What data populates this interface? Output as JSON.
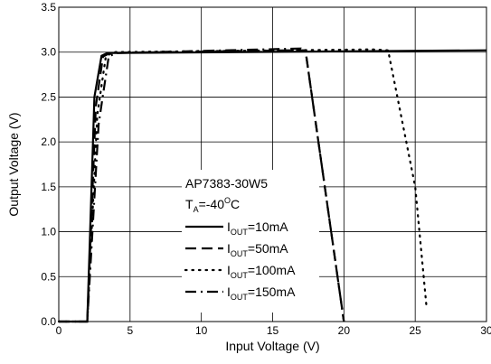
{
  "chart_data": {
    "type": "line",
    "xlabel": "Input Voltage (V)",
    "ylabel": "Output Voltage (V)",
    "xlim": [
      0,
      30
    ],
    "ylim": [
      0,
      3.5
    ],
    "x_ticks": [
      "0",
      "5",
      "10",
      "15",
      "20",
      "25",
      "30"
    ],
    "y_ticks": [
      "0.0",
      "0.5",
      "1.0",
      "1.5",
      "2.0",
      "2.5",
      "3.0",
      "3.5"
    ],
    "grid": true,
    "legend_placement": "bottom-center",
    "annotation": {
      "part": "AP7383-30W5",
      "condition_main": "T",
      "condition_sub": "A",
      "condition_value": "=-40",
      "condition_sup": "O",
      "condition_unit": "C"
    },
    "series": [
      {
        "name_main": "I",
        "name_sub": "OUT",
        "name_value": "=10mA",
        "dash": "solid",
        "color": "#000000",
        "points": [
          [
            0,
            0
          ],
          [
            2.0,
            0
          ],
          [
            2.5,
            2.5
          ],
          [
            3.0,
            2.96
          ],
          [
            3.4,
            2.99
          ],
          [
            30,
            3.02
          ]
        ]
      },
      {
        "name_main": "I",
        "name_sub": "OUT",
        "name_value": "=50mA",
        "dash": "dash",
        "color": "#000000",
        "points": [
          [
            0,
            0
          ],
          [
            2.0,
            0
          ],
          [
            2.6,
            2.4
          ],
          [
            3.1,
            2.95
          ],
          [
            3.6,
            2.99
          ],
          [
            16.0,
            3.02
          ],
          [
            17.3,
            3.02
          ],
          [
            20.0,
            0
          ]
        ]
      },
      {
        "name_main": "I",
        "name_sub": "OUT",
        "name_value": "=100mA",
        "dash": "dot",
        "color": "#000000",
        "points": [
          [
            0,
            0
          ],
          [
            2.0,
            0
          ],
          [
            2.7,
            2.3
          ],
          [
            3.3,
            2.95
          ],
          [
            3.8,
            3.0
          ],
          [
            22.0,
            3.03
          ],
          [
            23.1,
            3.02
          ],
          [
            25.0,
            1.5
          ],
          [
            25.8,
            0.15
          ]
        ]
      },
      {
        "name_main": "I",
        "name_sub": "OUT",
        "name_value": "=150mA",
        "dash": "dashdot",
        "color": "#000000",
        "points": [
          [
            0,
            0
          ],
          [
            2.0,
            0
          ],
          [
            2.8,
            2.2
          ],
          [
            3.5,
            2.95
          ],
          [
            4.0,
            2.99
          ],
          [
            17.0,
            3.04
          ],
          [
            17.3,
            3.02
          ],
          [
            20.0,
            0
          ]
        ]
      }
    ]
  }
}
